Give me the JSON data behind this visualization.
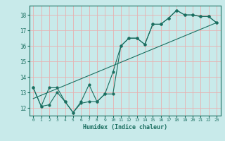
{
  "title": "",
  "xlabel": "Humidex (Indice chaleur)",
  "xlim": [
    -0.5,
    23.5
  ],
  "ylim": [
    11.5,
    18.6
  ],
  "xticks": [
    0,
    1,
    2,
    3,
    4,
    5,
    6,
    7,
    8,
    9,
    10,
    11,
    12,
    13,
    14,
    15,
    16,
    17,
    18,
    19,
    20,
    21,
    22,
    23
  ],
  "yticks": [
    12,
    13,
    14,
    15,
    16,
    17,
    18
  ],
  "bg_color": "#c8eaea",
  "grid_color": "#e8b0b0",
  "line_color": "#1a6e60",
  "line1_x": [
    0,
    1,
    2,
    3,
    4,
    5,
    6,
    7,
    8,
    9,
    10,
    11,
    12,
    13,
    14,
    15,
    16,
    17,
    18,
    19,
    20,
    21,
    22,
    23
  ],
  "line1_y": [
    13.3,
    12.1,
    13.3,
    13.3,
    12.4,
    11.7,
    12.4,
    13.5,
    12.4,
    12.9,
    14.3,
    16.0,
    16.5,
    16.5,
    16.1,
    17.4,
    17.4,
    17.8,
    18.3,
    18.0,
    18.0,
    17.9,
    17.9,
    17.5
  ],
  "line2_x": [
    0,
    1,
    2,
    3,
    4,
    5,
    6,
    7,
    8,
    9,
    10,
    11,
    12,
    13,
    14,
    15,
    16,
    17,
    18,
    19,
    20,
    21,
    22,
    23
  ],
  "line2_y": [
    13.3,
    12.1,
    12.2,
    13.0,
    12.4,
    11.7,
    12.3,
    12.4,
    12.4,
    12.9,
    12.9,
    16.0,
    16.5,
    16.5,
    16.1,
    17.4,
    17.4,
    17.8,
    18.3,
    18.0,
    18.0,
    17.9,
    17.9,
    17.5
  ],
  "line3_x": [
    0,
    23
  ],
  "line3_y": [
    12.6,
    17.5
  ]
}
